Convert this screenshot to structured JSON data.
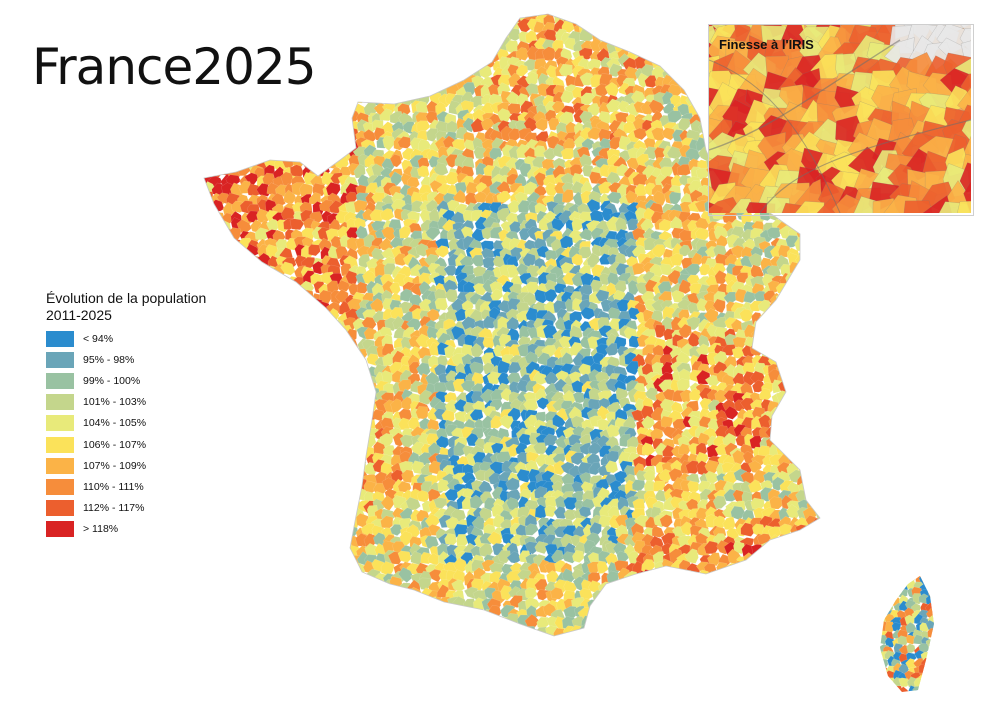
{
  "title": "France2025",
  "legend": {
    "title_line1": "Évolution de la population",
    "title_line2": "2011-2025",
    "items": [
      {
        "label": "< 94%",
        "color": "#2b8cce"
      },
      {
        "label": "95% - 98%",
        "color": "#6aa5b8"
      },
      {
        "label": "99% - 100%",
        "color": "#99c2a2"
      },
      {
        "label": "101% - 103%",
        "color": "#c4d68c"
      },
      {
        "label": "104% - 105%",
        "color": "#e8ea7a"
      },
      {
        "label": "106% - 107%",
        "color": "#fbe25a"
      },
      {
        "label": "107% - 109%",
        "color": "#fbb347"
      },
      {
        "label": "110% - 111%",
        "color": "#f68d3b"
      },
      {
        "label": "112% - 117%",
        "color": "#ec5f2e"
      },
      {
        "label": "> 118%",
        "color": "#d92323"
      }
    ]
  },
  "inset": {
    "title": "Finesse à l'IRIS"
  }
}
